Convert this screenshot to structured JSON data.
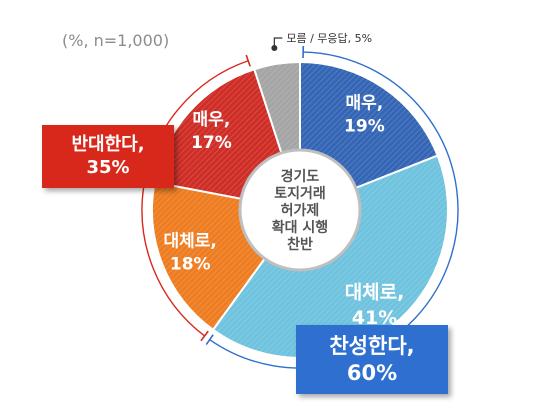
{
  "unit_note": "(%, n=1,000)",
  "center_label": [
    "경기도",
    "토지거래",
    "허가제",
    "확대 시행",
    "찬반"
  ],
  "against_total": [
    "반대한다,",
    "35%"
  ],
  "for_total": [
    "찬성한다,",
    "60%"
  ],
  "dont_know_label": "모름 / 무응답, 5%",
  "colors": {
    "strong_for": "#3566b5",
    "somewhat_for": "#6fc3de",
    "somewhat_against": "#ee7d22",
    "strong_against": "#cf2e27",
    "dont_know": "#a5a5a5",
    "for_box": "#2f6fd0",
    "against_box": "#d8281c"
  },
  "chart_data": {
    "type": "pie",
    "title": "",
    "slices": [
      {
        "name": "매우, 찬성",
        "label": [
          "매우,",
          "19%"
        ],
        "value": 19,
        "color": "#3566b5"
      },
      {
        "name": "대체로, 찬성",
        "label": [
          "대체로,",
          "41%"
        ],
        "value": 41,
        "color": "#6fc3de"
      },
      {
        "name": "대체로, 반대",
        "label": [
          "대체로,",
          "18%"
        ],
        "value": 18,
        "color": "#ee7d22"
      },
      {
        "name": "매우, 반대",
        "label": [
          "매우,",
          "17%"
        ],
        "value": 17,
        "color": "#cf2e27"
      },
      {
        "name": "모름/무응답",
        "label": [
          "",
          ""
        ],
        "value": 5,
        "color": "#a5a5a5"
      }
    ],
    "groups": [
      {
        "name": "찬성한다",
        "value": 60
      },
      {
        "name": "반대한다",
        "value": 35
      }
    ]
  }
}
